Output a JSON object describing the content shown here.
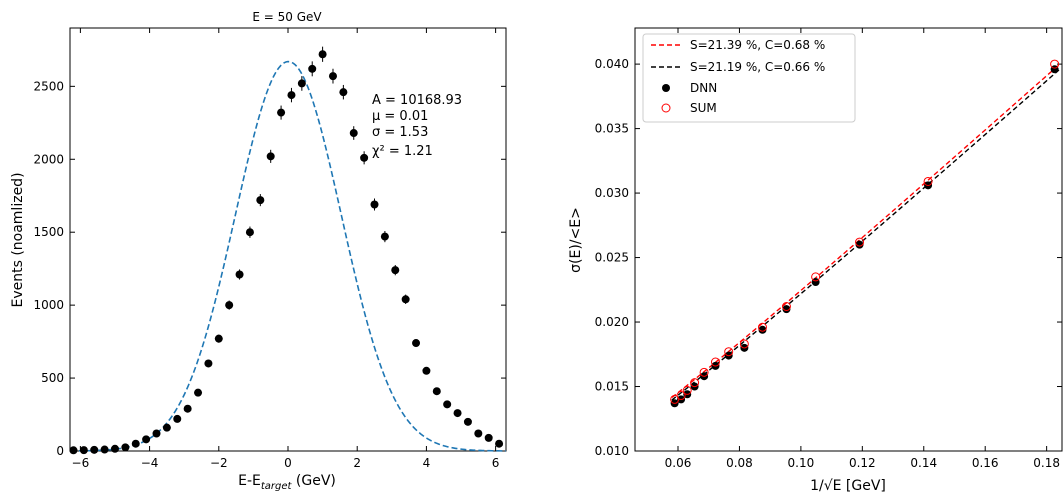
{
  "chart_data": [
    {
      "type": "scatter",
      "title": "E = 50 GeV",
      "xlabel_main": "E-E",
      "xlabel_sub": "target",
      "xlabel_end": " (GeV)",
      "ylabel": "Events (noamlized)",
      "xlim": [
        -6.3,
        6.3
      ],
      "ylim": [
        0,
        2900
      ],
      "xticks": [
        -6,
        -4,
        -2,
        0,
        2,
        4,
        6
      ],
      "yticks": [
        0,
        500,
        1000,
        1500,
        2000,
        2500
      ],
      "xtick_labels": [
        "−6",
        "−4",
        "−2",
        "0",
        "2",
        "4",
        "6"
      ],
      "ytick_labels": [
        "0",
        "500",
        "1000",
        "1500",
        "2000",
        "2500"
      ],
      "fit": {
        "A": 10168.93,
        "mu": 0.01,
        "sigma": 1.53,
        "color": "#1f77b4"
      },
      "annotations": [
        "A = 10168.93",
        "μ = 0.01",
        "σ = 1.53",
        "χ² = 1.21"
      ],
      "series": [
        {
          "marker_color": "#000000",
          "x": [
            -6.2,
            -5.9,
            -5.6,
            -5.3,
            -5.0,
            -4.7,
            -4.4,
            -4.1,
            -3.8,
            -3.5,
            -3.2,
            -2.9,
            -2.6,
            -2.3,
            -2.0,
            -1.7,
            -1.4,
            -1.1,
            -0.8,
            -0.5,
            -0.2,
            0.1,
            0.4,
            0.7,
            1.0,
            1.3,
            1.6,
            1.9,
            2.2,
            2.5,
            2.8,
            3.1,
            3.4,
            3.7,
            4.0,
            4.3,
            4.6,
            4.9,
            5.2,
            5.5,
            5.8,
            6.1
          ],
          "y": [
            5,
            6,
            8,
            10,
            15,
            25,
            50,
            80,
            120,
            160,
            220,
            290,
            400,
            600,
            770,
            1000,
            1210,
            1500,
            1720,
            2020,
            2320,
            2440,
            2520,
            2620,
            2720,
            2570,
            2460,
            2180,
            2010,
            1690,
            1470,
            1240,
            1040,
            740,
            550,
            410,
            320,
            260,
            200,
            120,
            90,
            50
          ]
        }
      ]
    },
    {
      "type": "scatter",
      "xlabel": "1/√E [GeV]",
      "ylabel": "σ(E)/<E>",
      "xlim": [
        0.046,
        0.185
      ],
      "ylim": [
        0.01,
        0.0428
      ],
      "xticks": [
        0.06,
        0.08,
        0.1,
        0.12,
        0.14,
        0.16,
        0.18
      ],
      "yticks": [
        0.01,
        0.015,
        0.02,
        0.025,
        0.03,
        0.035,
        0.04
      ],
      "xtick_labels": [
        "0.06",
        "0.08",
        "0.10",
        "0.12",
        "0.14",
        "0.16",
        "0.18"
      ],
      "ytick_labels": [
        "0.010",
        "0.015",
        "0.020",
        "0.025",
        "0.030",
        "0.035",
        "0.040"
      ],
      "legend_position": "upper-left",
      "fits": [
        {
          "name": "S=21.39 %, C=0.68 %",
          "color": "#ff0000",
          "S": 0.2139,
          "C": 0.0068
        },
        {
          "name": "S=21.19 %, C=0.66 %",
          "color": "#000000",
          "S": 0.2119,
          "C": 0.0066
        }
      ],
      "series": [
        {
          "name": "DNN",
          "marker": "filled-circle",
          "color": "#000000",
          "x": [
            0.0589,
            0.061,
            0.063,
            0.0654,
            0.0685,
            0.0722,
            0.0765,
            0.0816,
            0.0875,
            0.0953,
            0.1048,
            0.1191,
            0.1414,
            0.1826
          ],
          "y": [
            0.0137,
            0.014,
            0.0144,
            0.015,
            0.0158,
            0.0166,
            0.0174,
            0.018,
            0.0194,
            0.021,
            0.0231,
            0.026,
            0.0306,
            0.0396
          ]
        },
        {
          "name": "SUM",
          "marker": "open-circle",
          "color": "#ff0000",
          "x": [
            0.0589,
            0.061,
            0.063,
            0.0654,
            0.0685,
            0.0722,
            0.0765,
            0.0816,
            0.0875,
            0.0953,
            0.1048,
            0.1191,
            0.1414,
            0.1826
          ],
          "y": [
            0.014,
            0.0143,
            0.0147,
            0.0153,
            0.0161,
            0.0169,
            0.0177,
            0.0183,
            0.0196,
            0.0212,
            0.0235,
            0.0262,
            0.0309,
            0.04
          ]
        }
      ]
    }
  ]
}
